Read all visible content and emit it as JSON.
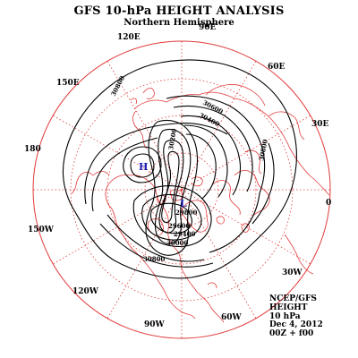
{
  "map": {
    "title": "GFS 10-hPa HEIGHT ANALYSIS",
    "subtitle": "Northern Hemisphere",
    "longitude_labels": {
      "lon_90e": "90E",
      "lon_120e": "120E",
      "lon_60e": "60E",
      "lon_150e": "150E",
      "lon_30e": "30E",
      "lon_180": "180",
      "lon_0": "0",
      "lon_150w": "150W",
      "lon_30w": "30W",
      "lon_120w": "120W",
      "lon_60w": "60W",
      "lon_90w": "90W"
    },
    "pressure_centers": {
      "high": "H",
      "low": "L"
    },
    "contour_labels": {
      "outer_ring": "30800",
      "ridge_top": "30600",
      "upper_left": "30400",
      "vortex_upper": "30200",
      "vortex_lower": "29800",
      "lower_1": "29600",
      "lower_2": "29400",
      "lower_3": "30000",
      "right_edge": "30800"
    },
    "info_box": {
      "line1": "NCEP/GFS",
      "line2": "HEIGHT",
      "line3": "10 hPa",
      "line4": "Dec 4, 2012",
      "line5": "00Z + f00"
    },
    "colors": {
      "grid": "#e03a3a",
      "coast": "#e03a3a",
      "contour": "#000000",
      "center_marks": "#1a1ab0"
    }
  }
}
